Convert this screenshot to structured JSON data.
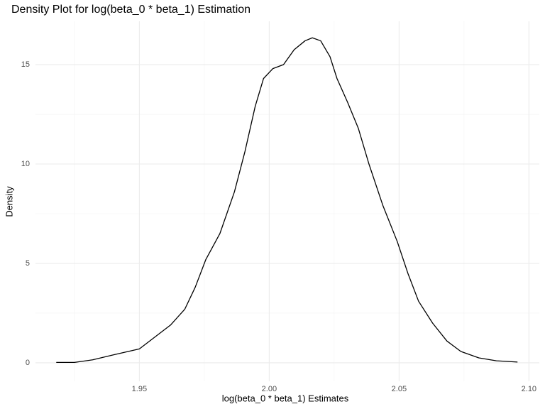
{
  "chart_data": {
    "type": "line",
    "title": "Density Plot for log(beta_0 * beta_1) Estimation",
    "x_label": "log(beta_0 * beta_1) Estimates",
    "y_label": "Density",
    "x": [
      1.918,
      1.925,
      1.932,
      1.94,
      1.95,
      1.955,
      1.962,
      1.9675,
      1.9715,
      1.9756,
      1.981,
      1.9866,
      1.9906,
      1.9946,
      1.9978,
      2.0014,
      2.0055,
      2.0096,
      2.0138,
      2.0166,
      2.0198,
      2.0234,
      2.0261,
      2.0302,
      2.0343,
      2.0384,
      2.0438,
      2.0493,
      2.0534,
      2.0575,
      2.0629,
      2.0684,
      2.0738,
      2.0807,
      2.0875,
      2.0956
    ],
    "series": [
      {
        "name": "density",
        "color": "#000000",
        "values": [
          0.02,
          0.02,
          0.15,
          0.4,
          0.7,
          1.2,
          1.9,
          2.7,
          3.8,
          5.2,
          6.5,
          8.6,
          10.6,
          12.9,
          14.3,
          14.8,
          15.0,
          15.75,
          16.2,
          16.35,
          16.2,
          15.4,
          14.3,
          13.1,
          11.8,
          10.0,
          7.9,
          6.1,
          4.5,
          3.1,
          2.0,
          1.1,
          0.57,
          0.25,
          0.1,
          0.04
        ]
      }
    ],
    "xlim": [
      1.91,
      2.104
    ],
    "ylim": [
      -0.93,
      17.18
    ],
    "xticks": [
      1.95,
      {
        "value": 2.0,
        "label": "2.00"
      },
      2.05,
      {
        "value": 2.1,
        "label": "2.10"
      }
    ],
    "yticks": [
      0,
      5,
      10,
      15
    ],
    "grid": true,
    "minor_grid": true
  }
}
